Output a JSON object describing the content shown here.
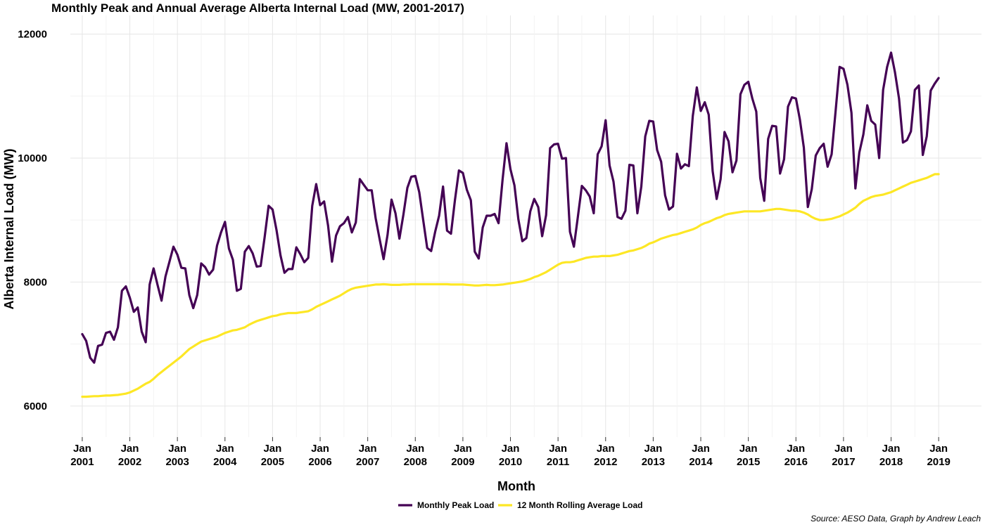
{
  "chart_data": {
    "type": "line",
    "title": "Monthly Peak and Annual Average Alberta Internal Load (MW, 2001-2017)",
    "xlabel": "Month",
    "ylabel": "Alberta Internal Load (MW)",
    "source": "Source: AESO Data, Graph by Andrew Leach",
    "ylim": [
      5500,
      12300
    ],
    "yticks": [
      6000,
      8000,
      10000,
      12000
    ],
    "xlim": [
      2000.75,
      2019.9
    ],
    "xticks": [
      {
        "year": 2001,
        "month": "Jan",
        "label": "2001"
      },
      {
        "year": 2002,
        "month": "Jan",
        "label": "2002"
      },
      {
        "year": 2003,
        "month": "Jan",
        "label": "2003"
      },
      {
        "year": 2004,
        "month": "Jan",
        "label": "2004"
      },
      {
        "year": 2005,
        "month": "Jan",
        "label": "2005"
      },
      {
        "year": 2006,
        "month": "Jan",
        "label": "2006"
      },
      {
        "year": 2007,
        "month": "Jan",
        "label": "2007"
      },
      {
        "year": 2008,
        "month": "Jan",
        "label": "2008"
      },
      {
        "year": 2009,
        "month": "Jan",
        "label": "2009"
      },
      {
        "year": 2010,
        "month": "Jan",
        "label": "2010"
      },
      {
        "year": 2011,
        "month": "Jan",
        "label": "2011"
      },
      {
        "year": 2012,
        "month": "Jan",
        "label": "2012"
      },
      {
        "year": 2013,
        "month": "Jan",
        "label": "2013"
      },
      {
        "year": 2014,
        "month": "Jan",
        "label": "2014"
      },
      {
        "year": 2015,
        "month": "Jan",
        "label": "2015"
      },
      {
        "year": 2016,
        "month": "Jan",
        "label": "2016"
      },
      {
        "year": 2017,
        "month": "Jan",
        "label": "2017"
      },
      {
        "year": 2018,
        "month": "Jan",
        "label": "2018"
      },
      {
        "year": 2019,
        "month": "Jan",
        "label": "2019"
      }
    ],
    "legend_position": "bottom",
    "grid": true,
    "start": "2001-01",
    "series": [
      {
        "name": "Monthly Peak Load",
        "color": "#440154",
        "values": [
          7160,
          7050,
          6780,
          6700,
          6970,
          6990,
          7180,
          7200,
          7070,
          7270,
          7860,
          7930,
          7750,
          7520,
          7590,
          7200,
          7030,
          7960,
          8220,
          7950,
          7700,
          8090,
          8330,
          8570,
          8440,
          8230,
          8220,
          7790,
          7580,
          7790,
          8300,
          8240,
          8120,
          8200,
          8590,
          8800,
          8970,
          8540,
          8360,
          7860,
          7890,
          8490,
          8580,
          8460,
          8250,
          8260,
          8720,
          9230,
          9170,
          8840,
          8430,
          8150,
          8210,
          8210,
          8560,
          8450,
          8320,
          8390,
          9230,
          9580,
          9240,
          9300,
          8910,
          8330,
          8750,
          8900,
          8950,
          9050,
          8800,
          8960,
          9660,
          9570,
          9480,
          9480,
          9030,
          8690,
          8370,
          8760,
          9330,
          9110,
          8700,
          9090,
          9520,
          9700,
          9710,
          9450,
          9000,
          8550,
          8500,
          8810,
          9070,
          9540,
          8830,
          8780,
          9320,
          9800,
          9760,
          9490,
          9320,
          8490,
          8380,
          8880,
          9070,
          9070,
          9100,
          8950,
          9650,
          10240,
          9820,
          9560,
          9010,
          8660,
          8710,
          9140,
          9340,
          9210,
          8740,
          9080,
          10160,
          10220,
          10230,
          9990,
          10000,
          8810,
          8570,
          9050,
          9550,
          9480,
          9380,
          9110,
          10060,
          10190,
          10610,
          9880,
          9620,
          9050,
          9020,
          9150,
          9890,
          9880,
          9110,
          9540,
          10350,
          10600,
          10590,
          10130,
          9940,
          9400,
          9170,
          9220,
          10070,
          9830,
          9900,
          9870,
          10680,
          11140,
          10760,
          10900,
          10700,
          9790,
          9340,
          9660,
          10420,
          10270,
          9770,
          9960,
          11030,
          11180,
          11230,
          10960,
          10750,
          9680,
          9310,
          10310,
          10520,
          10510,
          9750,
          9980,
          10830,
          10980,
          10960,
          10620,
          10170,
          9210,
          9500,
          10040,
          10160,
          10230,
          9860,
          10060,
          10750,
          11470,
          11440,
          11180,
          10730,
          9510,
          10090,
          10380,
          10850,
          10600,
          10540,
          10000,
          11100,
          11470,
          11700,
          11380,
          10960,
          10250,
          10290,
          10430,
          11100,
          11170,
          10050,
          10350,
          11090,
          11200,
          11290
        ]
      },
      {
        "name": "12 Month Rolling Average Load",
        "color": "#fde725",
        "values": [
          6150,
          6150,
          6155,
          6160,
          6160,
          6165,
          6170,
          6170,
          6175,
          6180,
          6190,
          6200,
          6220,
          6250,
          6280,
          6320,
          6360,
          6390,
          6440,
          6500,
          6550,
          6600,
          6650,
          6700,
          6750,
          6800,
          6860,
          6920,
          6960,
          7000,
          7040,
          7060,
          7080,
          7100,
          7120,
          7150,
          7180,
          7200,
          7220,
          7230,
          7250,
          7270,
          7310,
          7340,
          7370,
          7390,
          7410,
          7430,
          7450,
          7460,
          7480,
          7490,
          7500,
          7500,
          7500,
          7510,
          7520,
          7530,
          7560,
          7600,
          7630,
          7660,
          7690,
          7720,
          7750,
          7780,
          7820,
          7860,
          7890,
          7910,
          7920,
          7930,
          7940,
          7950,
          7960,
          7960,
          7965,
          7960,
          7955,
          7955,
          7955,
          7960,
          7960,
          7965,
          7965,
          7965,
          7965,
          7965,
          7965,
          7965,
          7965,
          7965,
          7965,
          7960,
          7960,
          7960,
          7960,
          7955,
          7950,
          7945,
          7945,
          7950,
          7955,
          7950,
          7950,
          7955,
          7960,
          7970,
          7980,
          7990,
          8000,
          8010,
          8030,
          8050,
          8080,
          8100,
          8130,
          8160,
          8200,
          8240,
          8280,
          8310,
          8320,
          8320,
          8330,
          8350,
          8370,
          8390,
          8400,
          8410,
          8410,
          8420,
          8420,
          8420,
          8430,
          8440,
          8460,
          8480,
          8500,
          8510,
          8530,
          8550,
          8580,
          8620,
          8640,
          8670,
          8700,
          8720,
          8740,
          8760,
          8770,
          8790,
          8810,
          8830,
          8850,
          8880,
          8920,
          8950,
          8970,
          9000,
          9030,
          9050,
          9080,
          9100,
          9110,
          9120,
          9130,
          9140,
          9140,
          9140,
          9140,
          9140,
          9150,
          9160,
          9170,
          9180,
          9180,
          9170,
          9160,
          9150,
          9150,
          9140,
          9120,
          9090,
          9050,
          9020,
          9000,
          9000,
          9010,
          9020,
          9040,
          9060,
          9090,
          9120,
          9160,
          9200,
          9260,
          9310,
          9340,
          9370,
          9390,
          9400,
          9410,
          9430,
          9450,
          9480,
          9510,
          9540,
          9570,
          9600,
          9620,
          9640,
          9660,
          9680,
          9710,
          9740,
          9740
        ]
      }
    ]
  }
}
